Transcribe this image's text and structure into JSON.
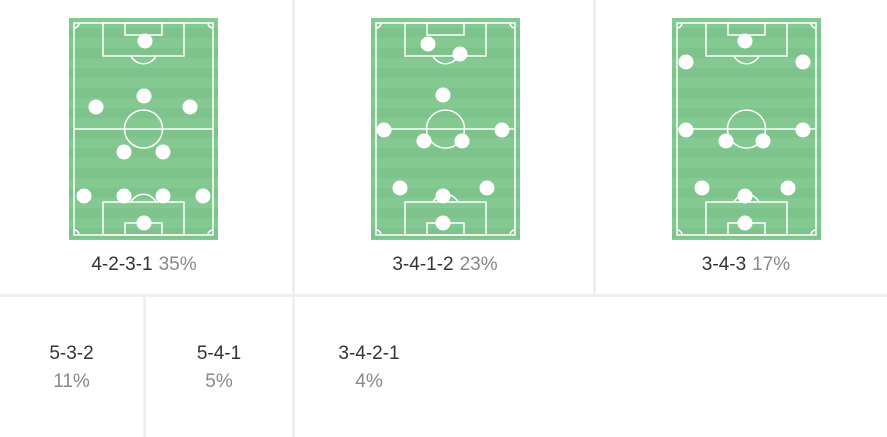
{
  "formations": [
    {
      "name": "4-2-3-1",
      "percent": "35%"
    },
    {
      "name": "3-4-1-2",
      "percent": "23%"
    },
    {
      "name": "3-4-3",
      "percent": "17%"
    },
    {
      "name": "5-3-2",
      "percent": "11%"
    },
    {
      "name": "5-4-1",
      "percent": "5%"
    },
    {
      "name": "3-4-2-1",
      "percent": "4%"
    }
  ],
  "colors": {
    "pitch": "#7dc38b",
    "pitch_stripe": "#84c892",
    "lines": "#ffffff",
    "player": "#ffffff",
    "label": "#333333",
    "percent": "#888888"
  }
}
